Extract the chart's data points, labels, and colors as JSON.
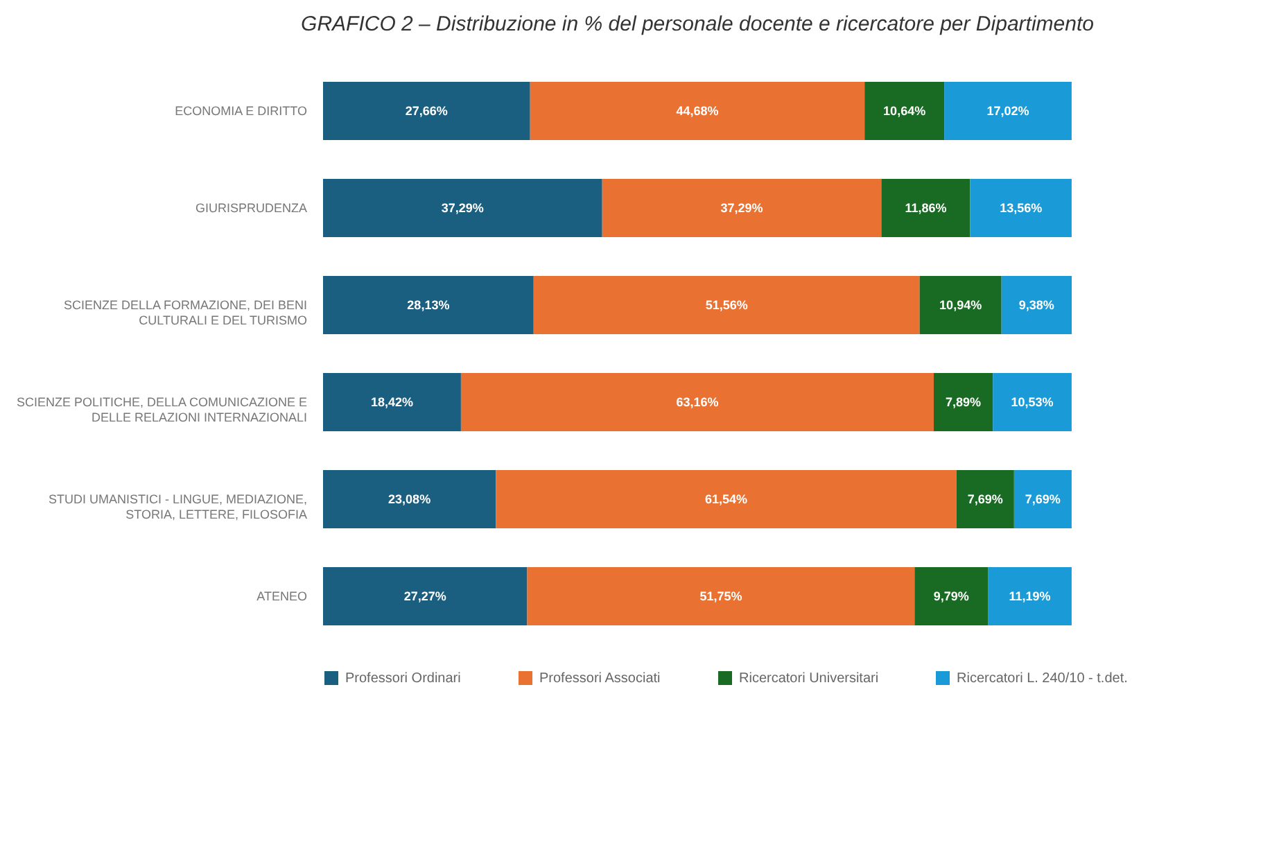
{
  "chart_data": {
    "type": "bar",
    "orientation": "horizontal",
    "stacked": true,
    "title": "GRAFICO 2 – Distribuzione in % del personale docente e ricercatore per Dipartimento",
    "categories": [
      "ECONOMIA E DIRITTO",
      "GIURISPRUDENZA",
      "SCIENZE DELLA FORMAZIONE, DEI BENI CULTURALI E DEL TURISMO",
      "SCIENZE POLITICHE, DELLA COMUNICAZIONE E DELLE RELAZIONI INTERNAZIONALI",
      "STUDI UMANISTICI - LINGUE, MEDIAZIONE, STORIA, LETTERE, FILOSOFIA",
      "ATENEO"
    ],
    "series": [
      {
        "name": "Professori Ordinari",
        "color": "#1a5e80",
        "values": [
          27.66,
          37.29,
          28.13,
          18.42,
          23.08,
          27.27
        ],
        "value_labels": [
          "27,66%",
          "37,29%",
          "28,13%",
          "18,42%",
          "23,08%",
          "27,27%"
        ]
      },
      {
        "name": "Professori Associati",
        "color": "#e97132",
        "values": [
          44.68,
          37.29,
          51.56,
          63.16,
          61.54,
          51.75
        ],
        "value_labels": [
          "44,68%",
          "37,29%",
          "51,56%",
          "63,16%",
          "61,54%",
          "51,75%"
        ]
      },
      {
        "name": "Ricercatori Universitari",
        "color": "#196b24",
        "values": [
          10.64,
          11.86,
          10.94,
          7.89,
          7.69,
          9.79
        ],
        "value_labels": [
          "10,64%",
          "11,86%",
          "10,94%",
          "7,89%",
          "7,69%",
          "9,79%"
        ]
      },
      {
        "name": "Ricercatori L. 240/10 - t.det.",
        "color": "#1a9bd7",
        "values": [
          17.02,
          13.56,
          9.38,
          10.53,
          7.69,
          11.19
        ],
        "value_labels": [
          "17,02%",
          "13,56%",
          "9,38%",
          "10,53%",
          "7,69%",
          "11,19%"
        ]
      }
    ],
    "legend": "bottom"
  }
}
